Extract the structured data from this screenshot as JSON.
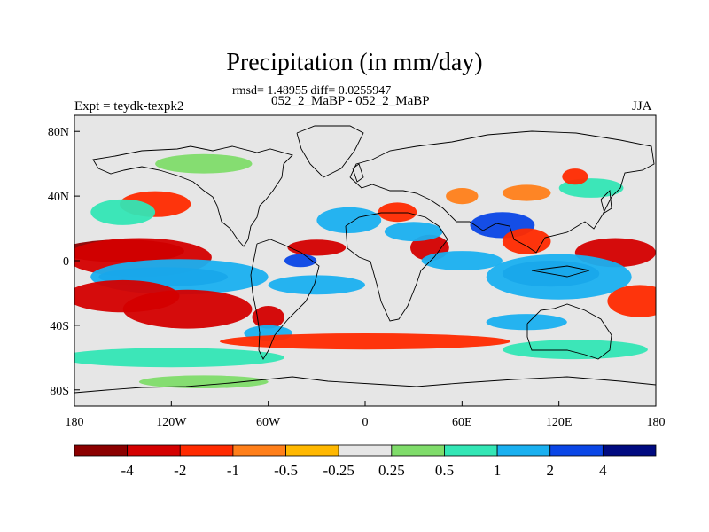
{
  "title": "Precipitation (in mm/day)",
  "stats": "rmsd= 1.48955 diff= 0.0255947",
  "subtitle": "052_2_MaBP - 052_2_MaBP",
  "left_label": "Expt = teydk-texpk2",
  "right_label": "JJA",
  "chart_data": {
    "type": "heatmap",
    "x_axis": {
      "range": [
        -180,
        180
      ],
      "ticks": [
        {
          "value": -180,
          "label": "180"
        },
        {
          "value": -120,
          "label": "120W"
        },
        {
          "value": -60,
          "label": "60W"
        },
        {
          "value": 0,
          "label": "0"
        },
        {
          "value": 60,
          "label": "60E"
        },
        {
          "value": 120,
          "label": "120E"
        },
        {
          "value": 180,
          "label": "180"
        }
      ]
    },
    "y_axis": {
      "range": [
        -90,
        90
      ],
      "ticks": [
        {
          "value": 80,
          "label": "80N"
        },
        {
          "value": 40,
          "label": "40N"
        },
        {
          "value": 0,
          "label": "0"
        },
        {
          "value": -40,
          "label": "40S"
        },
        {
          "value": -80,
          "label": "80S"
        }
      ]
    },
    "colorbar": {
      "levels": [
        "-4",
        "-2",
        "-1",
        "-0.5",
        "-0.25",
        "0.25",
        "0.5",
        "1",
        "2",
        "4"
      ],
      "colors": [
        "#8b0000",
        "#d40000",
        "#ff2a00",
        "#ff7f1a",
        "#ffb800",
        "#e6e6e6",
        "#7fdc6a",
        "#33e6b5",
        "#1ab0f0",
        "#0a46e6",
        "#000a80"
      ]
    },
    "features": [
      {
        "lon": -150,
        "lat": 6,
        "rx": 38,
        "ry": 7,
        "value": -4.5
      },
      {
        "lon": -140,
        "lat": 2,
        "rx": 45,
        "ry": 12,
        "value": -2.5
      },
      {
        "lon": -125,
        "lat": -10,
        "rx": 40,
        "ry": 6,
        "value": 5
      },
      {
        "lon": -115,
        "lat": -10,
        "rx": 55,
        "ry": 11,
        "value": 1.5
      },
      {
        "lon": -150,
        "lat": -22,
        "rx": 35,
        "ry": 10,
        "value": -2.5
      },
      {
        "lon": -110,
        "lat": -30,
        "rx": 40,
        "ry": 12,
        "value": -2
      },
      {
        "lon": -130,
        "lat": 35,
        "rx": 22,
        "ry": 8,
        "value": -1.5
      },
      {
        "lon": -150,
        "lat": 30,
        "rx": 20,
        "ry": 8,
        "value": 0.6
      },
      {
        "lon": 155,
        "lat": 5,
        "rx": 25,
        "ry": 9,
        "value": -2.5
      },
      {
        "lon": 115,
        "lat": -8,
        "rx": 30,
        "ry": 8,
        "value": 4.5
      },
      {
        "lon": 120,
        "lat": -10,
        "rx": 45,
        "ry": 14,
        "value": 1.5
      },
      {
        "lon": 170,
        "lat": -25,
        "rx": 20,
        "ry": 10,
        "value": -1.5
      },
      {
        "lon": 85,
        "lat": 22,
        "rx": 20,
        "ry": 8,
        "value": 2.5
      },
      {
        "lon": 100,
        "lat": 12,
        "rx": 15,
        "ry": 8,
        "value": -1.5
      },
      {
        "lon": 140,
        "lat": 45,
        "rx": 20,
        "ry": 6,
        "value": 0.6
      },
      {
        "lon": 40,
        "lat": 8,
        "rx": 12,
        "ry": 8,
        "value": -3
      },
      {
        "lon": 60,
        "lat": 0,
        "rx": 25,
        "ry": 6,
        "value": 1.2
      },
      {
        "lon": 30,
        "lat": 18,
        "rx": 18,
        "ry": 6,
        "value": 1.2
      },
      {
        "lon": -30,
        "lat": 8,
        "rx": 18,
        "ry": 5,
        "value": -2.5
      },
      {
        "lon": -40,
        "lat": 0,
        "rx": 10,
        "ry": 4,
        "value": 3
      },
      {
        "lon": -10,
        "lat": 25,
        "rx": 20,
        "ry": 8,
        "value": 1.5
      },
      {
        "lon": 20,
        "lat": 30,
        "rx": 12,
        "ry": 6,
        "value": -1.5
      },
      {
        "lon": -30,
        "lat": -15,
        "rx": 30,
        "ry": 6,
        "value": 1.2
      },
      {
        "lon": -60,
        "lat": -35,
        "rx": 10,
        "ry": 7,
        "value": -2.5
      },
      {
        "lon": -60,
        "lat": -45,
        "rx": 15,
        "ry": 5,
        "value": 1.5
      },
      {
        "lon": 0,
        "lat": -50,
        "rx": 90,
        "ry": 5,
        "value": -1.5
      },
      {
        "lon": 100,
        "lat": -38,
        "rx": 25,
        "ry": 5,
        "value": 1.5
      },
      {
        "lon": 130,
        "lat": -55,
        "rx": 45,
        "ry": 6,
        "value": 0.7
      },
      {
        "lon": -120,
        "lat": -60,
        "rx": 70,
        "ry": 6,
        "value": 0.6
      },
      {
        "lon": -100,
        "lat": -75,
        "rx": 40,
        "ry": 4,
        "value": 0.4
      },
      {
        "lon": -100,
        "lat": 60,
        "rx": 30,
        "ry": 6,
        "value": 0.4
      },
      {
        "lon": 60,
        "lat": 40,
        "rx": 10,
        "ry": 5,
        "value": -0.7
      },
      {
        "lon": 130,
        "lat": 52,
        "rx": 8,
        "ry": 5,
        "value": -1.2
      },
      {
        "lon": 100,
        "lat": 42,
        "rx": 15,
        "ry": 5,
        "value": -0.6
      }
    ]
  }
}
